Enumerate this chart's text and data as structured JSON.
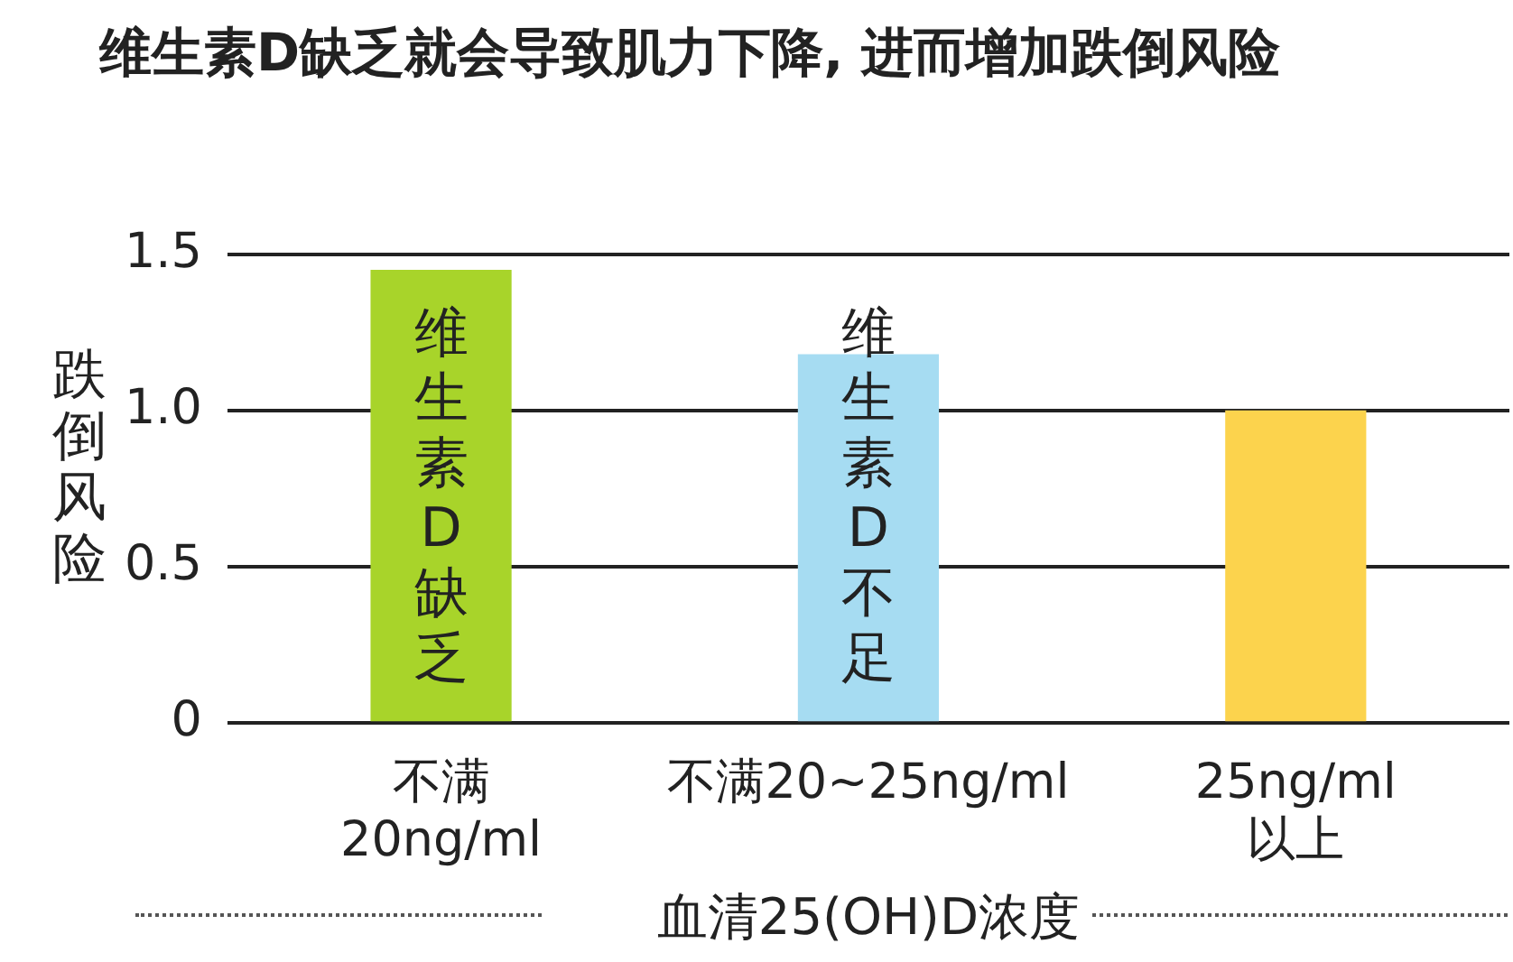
{
  "chart_data": {
    "type": "bar",
    "title": "维生素D缺乏就会导致肌力下降, 进而增加跌倒风险",
    "xlabel": "血清25(OH)D浓度",
    "ylabel": "跌倒风险",
    "categories": [
      "不满\n20ng/ml",
      "不满20~25ng/ml",
      "25ng/ml\n以上"
    ],
    "values": [
      1.45,
      1.18,
      1.0
    ],
    "colors": [
      "#a8d42a",
      "#a6dcf2",
      "#fcd34d"
    ],
    "ylim": [
      0,
      1.5
    ],
    "yticks": [
      0,
      {
        "value": 0.5,
        "label": "0.5"
      },
      {
        "value": 1,
        "label": "1.0"
      },
      1.5
    ],
    "grid": "y",
    "legend": false,
    "annotations": [
      "维生素D缺乏",
      "维生素D不足"
    ]
  }
}
